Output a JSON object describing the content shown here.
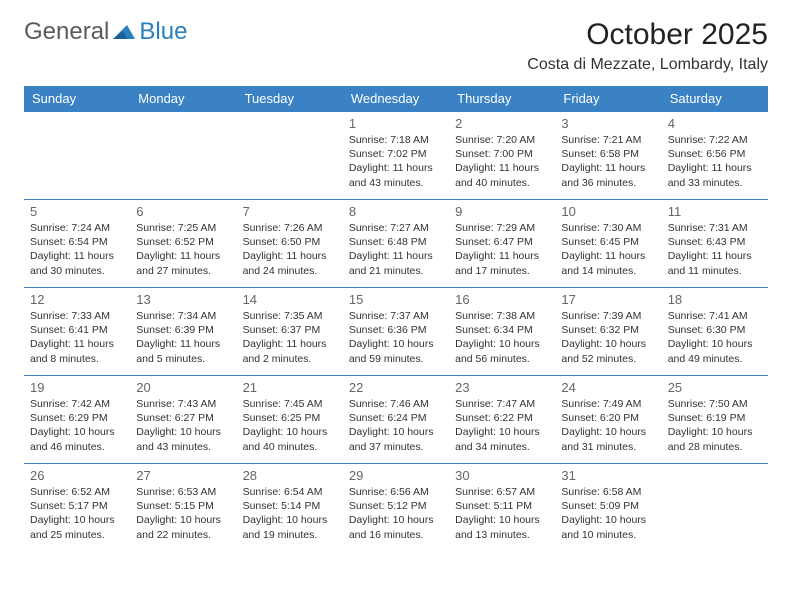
{
  "logo": {
    "text1": "General",
    "text2": "Blue",
    "color_general": "#5a5a5a",
    "color_blue": "#2a7fbf",
    "arrow_color": "#2a7fbf"
  },
  "title": "October 2025",
  "location": "Costa di Mezzate, Lombardy, Italy",
  "colors": {
    "header_bg": "#3b82c4",
    "header_text": "#ffffff",
    "border": "#3b82c4"
  },
  "day_headers": [
    "Sunday",
    "Monday",
    "Tuesday",
    "Wednesday",
    "Thursday",
    "Friday",
    "Saturday"
  ],
  "weeks": [
    [
      null,
      null,
      null,
      {
        "n": "1",
        "sr": "7:18 AM",
        "ss": "7:02 PM",
        "dl": "11 hours and 43 minutes."
      },
      {
        "n": "2",
        "sr": "7:20 AM",
        "ss": "7:00 PM",
        "dl": "11 hours and 40 minutes."
      },
      {
        "n": "3",
        "sr": "7:21 AM",
        "ss": "6:58 PM",
        "dl": "11 hours and 36 minutes."
      },
      {
        "n": "4",
        "sr": "7:22 AM",
        "ss": "6:56 PM",
        "dl": "11 hours and 33 minutes."
      }
    ],
    [
      {
        "n": "5",
        "sr": "7:24 AM",
        "ss": "6:54 PM",
        "dl": "11 hours and 30 minutes."
      },
      {
        "n": "6",
        "sr": "7:25 AM",
        "ss": "6:52 PM",
        "dl": "11 hours and 27 minutes."
      },
      {
        "n": "7",
        "sr": "7:26 AM",
        "ss": "6:50 PM",
        "dl": "11 hours and 24 minutes."
      },
      {
        "n": "8",
        "sr": "7:27 AM",
        "ss": "6:48 PM",
        "dl": "11 hours and 21 minutes."
      },
      {
        "n": "9",
        "sr": "7:29 AM",
        "ss": "6:47 PM",
        "dl": "11 hours and 17 minutes."
      },
      {
        "n": "10",
        "sr": "7:30 AM",
        "ss": "6:45 PM",
        "dl": "11 hours and 14 minutes."
      },
      {
        "n": "11",
        "sr": "7:31 AM",
        "ss": "6:43 PM",
        "dl": "11 hours and 11 minutes."
      }
    ],
    [
      {
        "n": "12",
        "sr": "7:33 AM",
        "ss": "6:41 PM",
        "dl": "11 hours and 8 minutes."
      },
      {
        "n": "13",
        "sr": "7:34 AM",
        "ss": "6:39 PM",
        "dl": "11 hours and 5 minutes."
      },
      {
        "n": "14",
        "sr": "7:35 AM",
        "ss": "6:37 PM",
        "dl": "11 hours and 2 minutes."
      },
      {
        "n": "15",
        "sr": "7:37 AM",
        "ss": "6:36 PM",
        "dl": "10 hours and 59 minutes."
      },
      {
        "n": "16",
        "sr": "7:38 AM",
        "ss": "6:34 PM",
        "dl": "10 hours and 56 minutes."
      },
      {
        "n": "17",
        "sr": "7:39 AM",
        "ss": "6:32 PM",
        "dl": "10 hours and 52 minutes."
      },
      {
        "n": "18",
        "sr": "7:41 AM",
        "ss": "6:30 PM",
        "dl": "10 hours and 49 minutes."
      }
    ],
    [
      {
        "n": "19",
        "sr": "7:42 AM",
        "ss": "6:29 PM",
        "dl": "10 hours and 46 minutes."
      },
      {
        "n": "20",
        "sr": "7:43 AM",
        "ss": "6:27 PM",
        "dl": "10 hours and 43 minutes."
      },
      {
        "n": "21",
        "sr": "7:45 AM",
        "ss": "6:25 PM",
        "dl": "10 hours and 40 minutes."
      },
      {
        "n": "22",
        "sr": "7:46 AM",
        "ss": "6:24 PM",
        "dl": "10 hours and 37 minutes."
      },
      {
        "n": "23",
        "sr": "7:47 AM",
        "ss": "6:22 PM",
        "dl": "10 hours and 34 minutes."
      },
      {
        "n": "24",
        "sr": "7:49 AM",
        "ss": "6:20 PM",
        "dl": "10 hours and 31 minutes."
      },
      {
        "n": "25",
        "sr": "7:50 AM",
        "ss": "6:19 PM",
        "dl": "10 hours and 28 minutes."
      }
    ],
    [
      {
        "n": "26",
        "sr": "6:52 AM",
        "ss": "5:17 PM",
        "dl": "10 hours and 25 minutes."
      },
      {
        "n": "27",
        "sr": "6:53 AM",
        "ss": "5:15 PM",
        "dl": "10 hours and 22 minutes."
      },
      {
        "n": "28",
        "sr": "6:54 AM",
        "ss": "5:14 PM",
        "dl": "10 hours and 19 minutes."
      },
      {
        "n": "29",
        "sr": "6:56 AM",
        "ss": "5:12 PM",
        "dl": "10 hours and 16 minutes."
      },
      {
        "n": "30",
        "sr": "6:57 AM",
        "ss": "5:11 PM",
        "dl": "10 hours and 13 minutes."
      },
      {
        "n": "31",
        "sr": "6:58 AM",
        "ss": "5:09 PM",
        "dl": "10 hours and 10 minutes."
      },
      null
    ]
  ],
  "labels": {
    "sunrise": "Sunrise:",
    "sunset": "Sunset:",
    "daylight": "Daylight:"
  }
}
